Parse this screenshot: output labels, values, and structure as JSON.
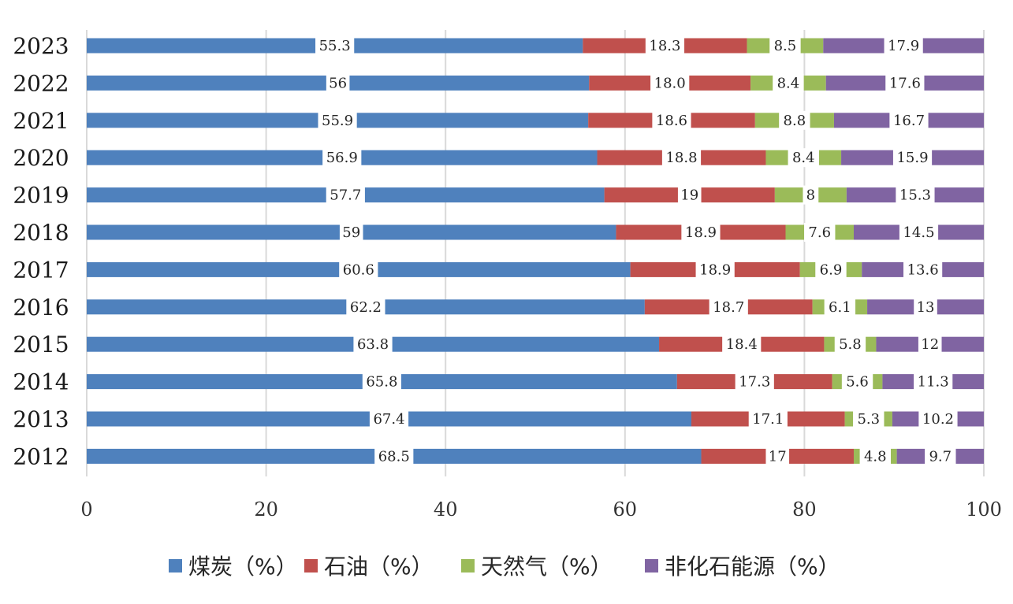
{
  "chart_data": {
    "type": "bar",
    "orientation": "horizontal",
    "stacked": true,
    "categories": [
      "2023",
      "2022",
      "2021",
      "2020",
      "2019",
      "2018",
      "2017",
      "2016",
      "2015",
      "2014",
      "2013",
      "2012"
    ],
    "series": [
      {
        "name": "煤炭（%）",
        "color": "#4f81bd",
        "values": [
          55.3,
          56,
          55.9,
          56.9,
          57.7,
          59,
          60.6,
          62.2,
          63.8,
          65.8,
          67.4,
          68.5
        ],
        "labels": [
          "55.3",
          "56",
          "55.9",
          "56.9",
          "57.7",
          "59",
          "60.6",
          "62.2",
          "63.8",
          "65.8",
          "67.4",
          "68.5"
        ]
      },
      {
        "name": "石油（%）",
        "color": "#c0504d",
        "values": [
          18.3,
          18.0,
          18.6,
          18.8,
          19,
          18.9,
          18.9,
          18.7,
          18.4,
          17.3,
          17.1,
          17
        ],
        "labels": [
          "18.3",
          "18.0",
          "18.6",
          "18.8",
          "19",
          "18.9",
          "18.9",
          "18.7",
          "18.4",
          "17.3",
          "17.1",
          "17"
        ]
      },
      {
        "name": "天然气（%）",
        "color": "#9bbb59",
        "values": [
          8.5,
          8.4,
          8.8,
          8.4,
          8,
          7.6,
          6.9,
          6.1,
          5.8,
          5.6,
          5.3,
          4.8
        ],
        "labels": [
          "8.5",
          "8.4",
          "8.8",
          "8.4",
          "8",
          "7.6",
          "6.9",
          "6.1",
          "5.8",
          "5.6",
          "5.3",
          "4.8"
        ]
      },
      {
        "name": "非化石能源（%）",
        "color": "#8064a2",
        "values": [
          17.9,
          17.6,
          16.7,
          15.9,
          15.3,
          14.5,
          13.6,
          13,
          12,
          11.3,
          10.2,
          9.7
        ],
        "labels": [
          "17.9",
          "17.6",
          "16.7",
          "15.9",
          "15.3",
          "14.5",
          "13.6",
          "13",
          "12",
          "11.3",
          "10.2",
          "9.7"
        ]
      }
    ],
    "xlim": [
      0,
      100
    ],
    "xticks": [
      "0",
      "20",
      "40",
      "60",
      "80",
      "100"
    ],
    "grid": true,
    "legend_position": "bottom"
  }
}
